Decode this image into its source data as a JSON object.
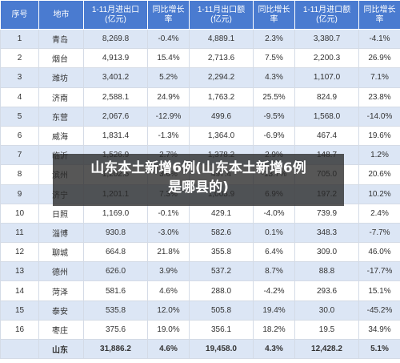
{
  "headers": [
    "序号",
    "地市",
    "1-11月进出口\n(亿元)",
    "同比增长率",
    "1-11月出口额\n(亿元)",
    "同比增长率",
    "1-11月进口额\n(亿元)",
    "同比增长率"
  ],
  "rows": [
    [
      "1",
      "青岛",
      "8,269.8",
      "-0.4%",
      "4,889.1",
      "2.3%",
      "3,380.7",
      "-4.1%"
    ],
    [
      "2",
      "烟台",
      "4,913.9",
      "15.4%",
      "2,713.6",
      "7.5%",
      "2,200.3",
      "26.9%"
    ],
    [
      "3",
      "潍坊",
      "3,401.2",
      "5.2%",
      "2,294.2",
      "4.3%",
      "1,107.0",
      "7.1%"
    ],
    [
      "4",
      "济南",
      "2,588.1",
      "24.9%",
      "1,763.2",
      "25.5%",
      "824.9",
      "23.8%"
    ],
    [
      "5",
      "东营",
      "2,067.6",
      "-12.9%",
      "499.6",
      "-9.5%",
      "1,568.0",
      "-14.0%"
    ],
    [
      "6",
      "威海",
      "1,831.4",
      "-1.3%",
      "1,364.0",
      "-6.9%",
      "467.4",
      "19.6%"
    ],
    [
      "7",
      "临沂",
      "1,526.9",
      "2.7%",
      "1,378.2",
      "2.9%",
      "148.7",
      "1.2%"
    ],
    [
      "8",
      "滨州",
      "1,202.5",
      "3.6%",
      "497.4",
      "-13.7%",
      "705.0",
      "20.6%"
    ],
    [
      "9",
      "济宁",
      "1,201.1",
      "7.3%",
      "1,003.9",
      "6.9%",
      "197.2",
      "10.2%"
    ],
    [
      "10",
      "日照",
      "1,169.0",
      "-0.1%",
      "429.1",
      "-4.0%",
      "739.9",
      "2.4%"
    ],
    [
      "11",
      "淄博",
      "930.8",
      "-3.0%",
      "582.6",
      "0.1%",
      "348.3",
      "-7.7%"
    ],
    [
      "12",
      "聊城",
      "664.8",
      "21.8%",
      "355.8",
      "6.4%",
      "309.0",
      "46.0%"
    ],
    [
      "13",
      "德州",
      "626.0",
      "3.9%",
      "537.2",
      "8.7%",
      "88.8",
      "-17.7%"
    ],
    [
      "14",
      "菏泽",
      "581.6",
      "4.6%",
      "288.0",
      "-4.2%",
      "293.6",
      "15.1%"
    ],
    [
      "15",
      "泰安",
      "535.8",
      "12.0%",
      "505.8",
      "19.4%",
      "30.0",
      "-45.2%"
    ],
    [
      "16",
      "枣庄",
      "375.6",
      "19.0%",
      "356.1",
      "18.2%",
      "19.5",
      "34.9%"
    ]
  ],
  "total": [
    "",
    "山东",
    "31,886.2",
    "4.6%",
    "19,458.0",
    "4.3%",
    "12,428.2",
    "5.1%"
  ],
  "overlay": {
    "line1": "山东本土新增6例(山东本土新增6例",
    "line2": "是哪县的)"
  }
}
